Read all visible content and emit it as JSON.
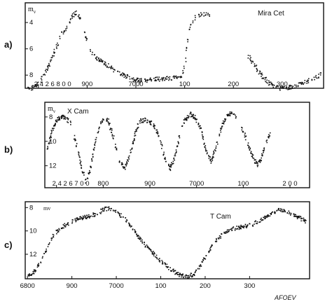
{
  "figure": {
    "credit": "AFOEV"
  },
  "chart_data": [
    {
      "type": "scatter",
      "panel": "a)",
      "star": "Mira Cet",
      "ylabel": "m_v",
      "xlabel": "",
      "x_ticks": [
        {
          "x": 2426800,
          "label": "2 4 2 6 8 0 0"
        },
        {
          "x": 2426900,
          "label": "900"
        },
        {
          "x": 2427000,
          "label": "7000"
        },
        {
          "x": 2427100,
          "label": "100"
        },
        {
          "x": 2427200,
          "label": "200"
        },
        {
          "x": 2427300,
          "label": "300"
        }
      ],
      "y_ticks": [
        {
          "y": 4,
          "label": "4"
        },
        {
          "y": 6,
          "label": "6"
        },
        {
          "y": 8,
          "label": "8"
        }
      ],
      "xlim": [
        2426773,
        2427385
      ],
      "ylim": [
        9.0,
        2.5
      ],
      "y_inverted": true,
      "series": [
        {
          "curve": [
            [
              2426775,
              9.0
            ],
            [
              2426790,
              8.9
            ],
            [
              2426805,
              8.3
            ],
            [
              2426815,
              7.6
            ],
            [
              2426825,
              6.8
            ],
            [
              2426835,
              5.9
            ],
            [
              2426845,
              5.0
            ],
            [
              2426855,
              4.4
            ],
            [
              2426862,
              3.9
            ],
            [
              2426870,
              3.4
            ],
            [
              2426878,
              3.2
            ],
            [
              2426890,
              4.0
            ],
            [
              2426900,
              5.6
            ],
            [
              2426905,
              6.2
            ],
            [
              2426920,
              6.7
            ],
            [
              2426940,
              7.2
            ],
            [
              2426955,
              7.6
            ],
            [
              2426975,
              8.0
            ],
            [
              2426995,
              8.3
            ],
            [
              2427015,
              8.4
            ],
            [
              2427040,
              8.3
            ],
            [
              2427065,
              8.2
            ],
            [
              2427080,
              8.2
            ],
            [
              2427095,
              8.0
            ],
            [
              2427100,
              7.0
            ],
            [
              2427104,
              5.5
            ],
            [
              2427108,
              4.5
            ],
            [
              2427113,
              4.0
            ],
            [
              2427120,
              3.6
            ],
            [
              2427128,
              3.4
            ],
            [
              2427140,
              3.3
            ],
            [
              2427150,
              3.5
            ]
          ],
          "curve2": [
            [
              2427230,
              6.5
            ],
            [
              2427242,
              7.2
            ],
            [
              2427255,
              7.9
            ],
            [
              2427270,
              8.5
            ],
            [
              2427285,
              8.9
            ],
            [
              2427305,
              9.0
            ],
            [
              2427325,
              8.8
            ],
            [
              2427345,
              8.5
            ],
            [
              2427365,
              8.2
            ],
            [
              2427378,
              7.9
            ]
          ]
        }
      ]
    },
    {
      "type": "scatter",
      "panel": "b)",
      "star": "X Cam",
      "ylabel": "m_v",
      "xlabel": "",
      "x_ticks": [
        {
          "x": 2426700,
          "label": "2 4 2 6 7 0 0"
        },
        {
          "x": 2426800,
          "label": "800"
        },
        {
          "x": 2426900,
          "label": "900"
        },
        {
          "x": 2427000,
          "label": "7000"
        },
        {
          "x": 2427100,
          "label": "100"
        },
        {
          "x": 2427200,
          "label": "2 0 0"
        }
      ],
      "y_ticks": [
        {
          "y": 8,
          "label": "8"
        },
        {
          "y": 10,
          "label": "10"
        },
        {
          "y": 12,
          "label": "12"
        }
      ],
      "xlim": [
        2426675,
        2427242
      ],
      "ylim": [
        13.8,
        6.8
      ],
      "y_inverted": true,
      "series": [
        {
          "curve": [
            [
              2426680,
              10.5
            ],
            [
              2426690,
              9.0
            ],
            [
              2426700,
              8.2
            ],
            [
              2426713,
              7.9
            ],
            [
              2426728,
              8.4
            ],
            [
              2426740,
              10.0
            ],
            [
              2426752,
              12.0
            ],
            [
              2426762,
              13.3
            ],
            [
              2426770,
              12.5
            ],
            [
              2426782,
              10.0
            ],
            [
              2426793,
              8.5
            ],
            [
              2426800,
              8.0
            ],
            [
              2426810,
              8.3
            ],
            [
              2426822,
              9.8
            ],
            [
              2426833,
              11.6
            ],
            [
              2426845,
              12.2
            ],
            [
              2426857,
              11.0
            ],
            [
              2426868,
              9.2
            ],
            [
              2426878,
              8.3
            ],
            [
              2426890,
              8.2
            ],
            [
              2426905,
              8.5
            ],
            [
              2426918,
              9.5
            ],
            [
              2426930,
              11.2
            ],
            [
              2426942,
              12.2
            ],
            [
              2426952,
              11.3
            ],
            [
              2426962,
              9.6
            ],
            [
              2426973,
              8.3
            ],
            [
              2426985,
              7.7
            ],
            [
              2426995,
              8.0
            ],
            [
              2427008,
              9.0
            ],
            [
              2427018,
              10.6
            ],
            [
              2427030,
              11.6
            ],
            [
              2427040,
              10.5
            ],
            [
              2427050,
              9.0
            ],
            [
              2427060,
              8.1
            ],
            [
              2427073,
              7.6
            ],
            [
              2427085,
              8.0
            ],
            [
              2427100,
              9.2
            ],
            [
              2427115,
              10.8
            ],
            [
              2427128,
              11.9
            ],
            [
              2427138,
              11.4
            ],
            [
              2427148,
              10.0
            ],
            [
              2427160,
              9.0
            ]
          ]
        }
      ]
    },
    {
      "type": "scatter",
      "panel": "c)",
      "star": "T Cam",
      "ylabel": "mv",
      "xlabel": "",
      "x_ticks": [
        {
          "x": 2426800,
          "label": "6800"
        },
        {
          "x": 2426900,
          "label": "900"
        },
        {
          "x": 2427000,
          "label": "7000"
        },
        {
          "x": 2427100,
          "label": "100"
        },
        {
          "x": 2427200,
          "label": "200"
        },
        {
          "x": 2427300,
          "label": "300"
        }
      ],
      "y_ticks": [
        {
          "y": 8,
          "label": "8"
        },
        {
          "y": 10,
          "label": "10"
        },
        {
          "y": 12,
          "label": "12"
        }
      ],
      "xlim": [
        2426795,
        2427435
      ],
      "ylim": [
        14.1,
        7.5
      ],
      "y_inverted": true,
      "series": [
        {
          "curve": [
            [
              2426800,
              13.8
            ],
            [
              2426815,
              13.4
            ],
            [
              2426830,
              12.5
            ],
            [
              2426845,
              11.4
            ],
            [
              2426855,
              10.4
            ],
            [
              2426870,
              9.8
            ],
            [
              2426890,
              9.3
            ],
            [
              2426910,
              9.0
            ],
            [
              2426935,
              8.7
            ],
            [
              2426955,
              8.5
            ],
            [
              2426970,
              8.1
            ],
            [
              2426985,
              8.0
            ],
            [
              2427000,
              8.3
            ],
            [
              2427020,
              9.0
            ],
            [
              2427040,
              10.0
            ],
            [
              2427060,
              11.0
            ],
            [
              2427080,
              11.8
            ],
            [
              2427100,
              12.6
            ],
            [
              2427120,
              13.2
            ],
            [
              2427140,
              13.7
            ],
            [
              2427160,
              13.9
            ],
            [
              2427175,
              13.6
            ],
            [
              2427190,
              12.8
            ],
            [
              2427205,
              11.8
            ],
            [
              2427220,
              10.9
            ],
            [
              2427240,
              10.2
            ],
            [
              2427260,
              9.8
            ],
            [
              2427285,
              9.6
            ],
            [
              2427305,
              9.4
            ],
            [
              2427325,
              9.0
            ],
            [
              2427345,
              8.6
            ],
            [
              2427365,
              8.1
            ],
            [
              2427385,
              8.3
            ],
            [
              2427405,
              8.7
            ],
            [
              2427425,
              9.1
            ]
          ]
        }
      ]
    }
  ]
}
